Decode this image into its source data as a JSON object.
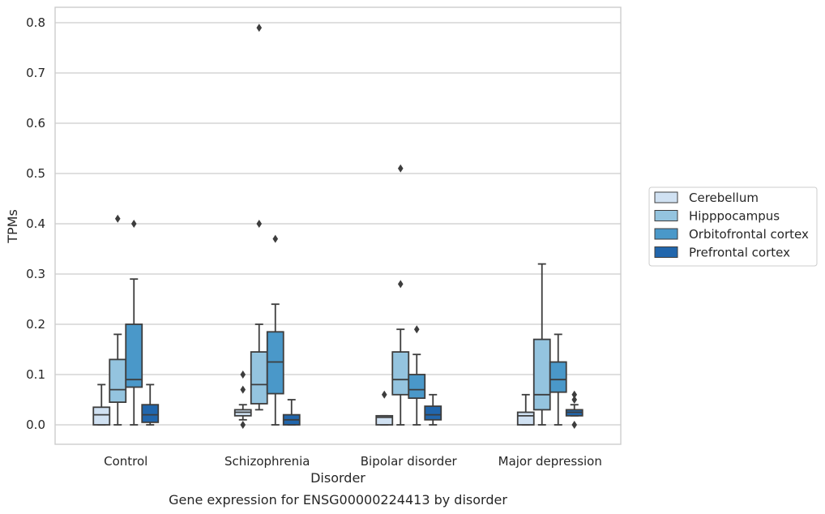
{
  "caption": "Gene expression for ENSG00000224413 by disorder",
  "chart_data": {
    "type": "box",
    "xlabel": "Disorder",
    "ylabel": "TPMs",
    "ylim": [
      -0.04,
      0.83
    ],
    "yticks": [
      "0.0",
      "0.1",
      "0.2",
      "0.3",
      "0.4",
      "0.5",
      "0.6",
      "0.7",
      "0.8"
    ],
    "grid": "horizontal",
    "legend_position": "right",
    "categories": [
      "Control",
      "Schizophrenia",
      "Bipolar disorder",
      "Major depression"
    ],
    "series": [
      {
        "name": "Cerebellum",
        "color": "#d0e1f2",
        "boxes": [
          {
            "whislo": 0.0,
            "q1": 0.0,
            "med": 0.02,
            "q3": 0.035,
            "whishi": 0.08,
            "fliers": []
          },
          {
            "whislo": 0.01,
            "q1": 0.018,
            "med": 0.025,
            "q3": 0.03,
            "whishi": 0.04,
            "fliers": [
              0.1,
              0.07,
              0.0
            ]
          },
          {
            "whislo": 0.0,
            "q1": 0.0,
            "med": 0.015,
            "q3": 0.018,
            "whishi": 0.018,
            "fliers": [
              0.06
            ]
          },
          {
            "whislo": 0.0,
            "q1": 0.0,
            "med": 0.018,
            "q3": 0.025,
            "whishi": 0.06,
            "fliers": []
          }
        ]
      },
      {
        "name": "Hipppocampus",
        "color": "#94c4df",
        "boxes": [
          {
            "whislo": 0.0,
            "q1": 0.045,
            "med": 0.07,
            "q3": 0.13,
            "whishi": 0.18,
            "fliers": [
              0.41
            ]
          },
          {
            "whislo": 0.03,
            "q1": 0.042,
            "med": 0.08,
            "q3": 0.145,
            "whishi": 0.2,
            "fliers": [
              0.79,
              0.4
            ]
          },
          {
            "whislo": 0.0,
            "q1": 0.06,
            "med": 0.09,
            "q3": 0.145,
            "whishi": 0.19,
            "fliers": [
              0.51,
              0.28
            ]
          },
          {
            "whislo": 0.0,
            "q1": 0.03,
            "med": 0.06,
            "q3": 0.17,
            "whishi": 0.32,
            "fliers": []
          }
        ]
      },
      {
        "name": "Orbitofrontal cortex",
        "color": "#4a98c9",
        "boxes": [
          {
            "whislo": 0.0,
            "q1": 0.075,
            "med": 0.09,
            "q3": 0.2,
            "whishi": 0.29,
            "fliers": [
              0.4
            ]
          },
          {
            "whislo": 0.0,
            "q1": 0.062,
            "med": 0.125,
            "q3": 0.185,
            "whishi": 0.24,
            "fliers": [
              0.37
            ]
          },
          {
            "whislo": 0.0,
            "q1": 0.053,
            "med": 0.07,
            "q3": 0.1,
            "whishi": 0.14,
            "fliers": [
              0.19
            ]
          },
          {
            "whislo": 0.0,
            "q1": 0.065,
            "med": 0.09,
            "q3": 0.125,
            "whishi": 0.18,
            "fliers": []
          }
        ]
      },
      {
        "name": "Prefrontal cortex",
        "color": "#2166ac",
        "boxes": [
          {
            "whislo": 0.0,
            "q1": 0.005,
            "med": 0.02,
            "q3": 0.04,
            "whishi": 0.08,
            "fliers": []
          },
          {
            "whislo": 0.0,
            "q1": 0.0,
            "med": 0.01,
            "q3": 0.02,
            "whishi": 0.05,
            "fliers": []
          },
          {
            "whislo": 0.0,
            "q1": 0.01,
            "med": 0.02,
            "q3": 0.037,
            "whishi": 0.06,
            "fliers": []
          },
          {
            "whislo": 0.018,
            "q1": 0.018,
            "med": 0.025,
            "q3": 0.03,
            "whishi": 0.04,
            "fliers": [
              0.06,
              0.05,
              0.0
            ]
          }
        ]
      }
    ]
  }
}
